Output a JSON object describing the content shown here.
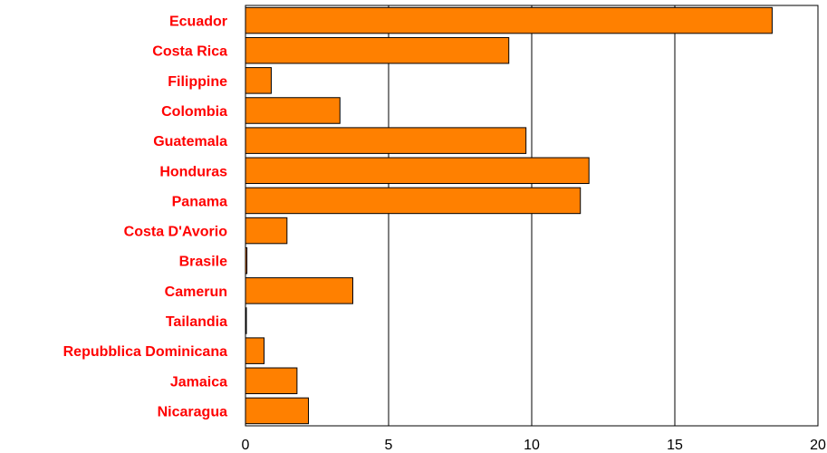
{
  "chart_data": {
    "type": "bar",
    "orientation": "horizontal",
    "categories": [
      "Ecuador",
      "Costa Rica",
      "Filippine",
      "Colombia",
      "Guatemala",
      "Honduras",
      "Panama",
      "Costa D'Avorio",
      "Brasile",
      "Camerun",
      "Tailandia",
      "Repubblica Dominicana",
      "Jamaica",
      "Nicaragua"
    ],
    "values": [
      18.4,
      9.2,
      0.9,
      3.3,
      9.8,
      12.0,
      11.7,
      1.45,
      0.05,
      3.75,
      0.02,
      0.65,
      1.8,
      2.2
    ],
    "title": "",
    "xlabel": "",
    "ylabel": "",
    "xlim": [
      0,
      20
    ],
    "xticks": [
      "0",
      "5",
      "10",
      "15",
      "20"
    ],
    "grid": "vertical lines at major ticks",
    "legend": "none",
    "colors": {
      "bar_fill": "#ff8000",
      "bar_stroke": "#000000",
      "category_label": "#ff0000",
      "grid": "#000000"
    }
  }
}
